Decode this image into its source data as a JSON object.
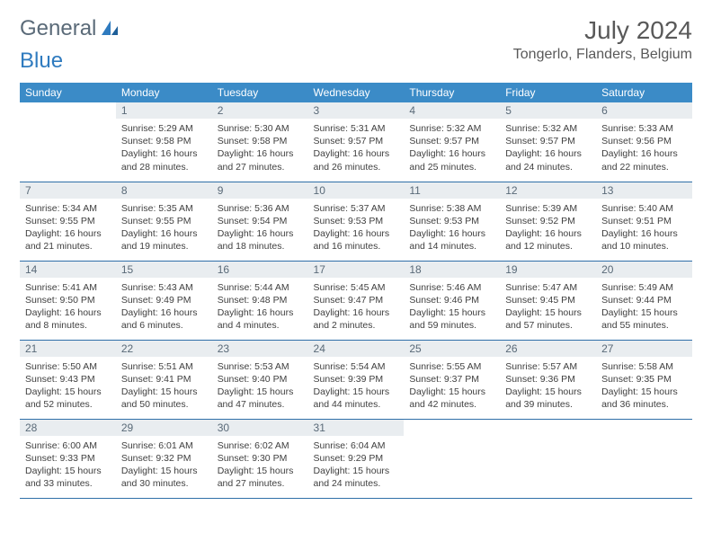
{
  "brand": {
    "word1": "General",
    "word2": "Blue"
  },
  "header": {
    "month_title": "July 2024",
    "location": "Tongerlo, Flanders, Belgium"
  },
  "colors": {
    "header_bg": "#3b8bc7",
    "header_text": "#ffffff",
    "daynum_bg": "#e9edf0",
    "daynum_text": "#5a6a78",
    "row_divider": "#2f6fa8",
    "body_text": "#404040",
    "title_text": "#595959",
    "logo_gray": "#5a6a78",
    "logo_blue": "#2f7bbf",
    "page_bg": "#ffffff"
  },
  "typography": {
    "month_title_fontsize_pt": 21,
    "location_fontsize_pt": 12,
    "dow_fontsize_pt": 9,
    "daynum_fontsize_pt": 9,
    "detail_fontsize_pt": 8
  },
  "calendar": {
    "type": "table",
    "columns": [
      "Sunday",
      "Monday",
      "Tuesday",
      "Wednesday",
      "Thursday",
      "Friday",
      "Saturday"
    ],
    "weeks": [
      [
        null,
        {
          "d": "1",
          "sr": "Sunrise: 5:29 AM",
          "ss": "Sunset: 9:58 PM",
          "dl1": "Daylight: 16 hours",
          "dl2": "and 28 minutes."
        },
        {
          "d": "2",
          "sr": "Sunrise: 5:30 AM",
          "ss": "Sunset: 9:58 PM",
          "dl1": "Daylight: 16 hours",
          "dl2": "and 27 minutes."
        },
        {
          "d": "3",
          "sr": "Sunrise: 5:31 AM",
          "ss": "Sunset: 9:57 PM",
          "dl1": "Daylight: 16 hours",
          "dl2": "and 26 minutes."
        },
        {
          "d": "4",
          "sr": "Sunrise: 5:32 AM",
          "ss": "Sunset: 9:57 PM",
          "dl1": "Daylight: 16 hours",
          "dl2": "and 25 minutes."
        },
        {
          "d": "5",
          "sr": "Sunrise: 5:32 AM",
          "ss": "Sunset: 9:57 PM",
          "dl1": "Daylight: 16 hours",
          "dl2": "and 24 minutes."
        },
        {
          "d": "6",
          "sr": "Sunrise: 5:33 AM",
          "ss": "Sunset: 9:56 PM",
          "dl1": "Daylight: 16 hours",
          "dl2": "and 22 minutes."
        }
      ],
      [
        {
          "d": "7",
          "sr": "Sunrise: 5:34 AM",
          "ss": "Sunset: 9:55 PM",
          "dl1": "Daylight: 16 hours",
          "dl2": "and 21 minutes."
        },
        {
          "d": "8",
          "sr": "Sunrise: 5:35 AM",
          "ss": "Sunset: 9:55 PM",
          "dl1": "Daylight: 16 hours",
          "dl2": "and 19 minutes."
        },
        {
          "d": "9",
          "sr": "Sunrise: 5:36 AM",
          "ss": "Sunset: 9:54 PM",
          "dl1": "Daylight: 16 hours",
          "dl2": "and 18 minutes."
        },
        {
          "d": "10",
          "sr": "Sunrise: 5:37 AM",
          "ss": "Sunset: 9:53 PM",
          "dl1": "Daylight: 16 hours",
          "dl2": "and 16 minutes."
        },
        {
          "d": "11",
          "sr": "Sunrise: 5:38 AM",
          "ss": "Sunset: 9:53 PM",
          "dl1": "Daylight: 16 hours",
          "dl2": "and 14 minutes."
        },
        {
          "d": "12",
          "sr": "Sunrise: 5:39 AM",
          "ss": "Sunset: 9:52 PM",
          "dl1": "Daylight: 16 hours",
          "dl2": "and 12 minutes."
        },
        {
          "d": "13",
          "sr": "Sunrise: 5:40 AM",
          "ss": "Sunset: 9:51 PM",
          "dl1": "Daylight: 16 hours",
          "dl2": "and 10 minutes."
        }
      ],
      [
        {
          "d": "14",
          "sr": "Sunrise: 5:41 AM",
          "ss": "Sunset: 9:50 PM",
          "dl1": "Daylight: 16 hours",
          "dl2": "and 8 minutes."
        },
        {
          "d": "15",
          "sr": "Sunrise: 5:43 AM",
          "ss": "Sunset: 9:49 PM",
          "dl1": "Daylight: 16 hours",
          "dl2": "and 6 minutes."
        },
        {
          "d": "16",
          "sr": "Sunrise: 5:44 AM",
          "ss": "Sunset: 9:48 PM",
          "dl1": "Daylight: 16 hours",
          "dl2": "and 4 minutes."
        },
        {
          "d": "17",
          "sr": "Sunrise: 5:45 AM",
          "ss": "Sunset: 9:47 PM",
          "dl1": "Daylight: 16 hours",
          "dl2": "and 2 minutes."
        },
        {
          "d": "18",
          "sr": "Sunrise: 5:46 AM",
          "ss": "Sunset: 9:46 PM",
          "dl1": "Daylight: 15 hours",
          "dl2": "and 59 minutes."
        },
        {
          "d": "19",
          "sr": "Sunrise: 5:47 AM",
          "ss": "Sunset: 9:45 PM",
          "dl1": "Daylight: 15 hours",
          "dl2": "and 57 minutes."
        },
        {
          "d": "20",
          "sr": "Sunrise: 5:49 AM",
          "ss": "Sunset: 9:44 PM",
          "dl1": "Daylight: 15 hours",
          "dl2": "and 55 minutes."
        }
      ],
      [
        {
          "d": "21",
          "sr": "Sunrise: 5:50 AM",
          "ss": "Sunset: 9:43 PM",
          "dl1": "Daylight: 15 hours",
          "dl2": "and 52 minutes."
        },
        {
          "d": "22",
          "sr": "Sunrise: 5:51 AM",
          "ss": "Sunset: 9:41 PM",
          "dl1": "Daylight: 15 hours",
          "dl2": "and 50 minutes."
        },
        {
          "d": "23",
          "sr": "Sunrise: 5:53 AM",
          "ss": "Sunset: 9:40 PM",
          "dl1": "Daylight: 15 hours",
          "dl2": "and 47 minutes."
        },
        {
          "d": "24",
          "sr": "Sunrise: 5:54 AM",
          "ss": "Sunset: 9:39 PM",
          "dl1": "Daylight: 15 hours",
          "dl2": "and 44 minutes."
        },
        {
          "d": "25",
          "sr": "Sunrise: 5:55 AM",
          "ss": "Sunset: 9:37 PM",
          "dl1": "Daylight: 15 hours",
          "dl2": "and 42 minutes."
        },
        {
          "d": "26",
          "sr": "Sunrise: 5:57 AM",
          "ss": "Sunset: 9:36 PM",
          "dl1": "Daylight: 15 hours",
          "dl2": "and 39 minutes."
        },
        {
          "d": "27",
          "sr": "Sunrise: 5:58 AM",
          "ss": "Sunset: 9:35 PM",
          "dl1": "Daylight: 15 hours",
          "dl2": "and 36 minutes."
        }
      ],
      [
        {
          "d": "28",
          "sr": "Sunrise: 6:00 AM",
          "ss": "Sunset: 9:33 PM",
          "dl1": "Daylight: 15 hours",
          "dl2": "and 33 minutes."
        },
        {
          "d": "29",
          "sr": "Sunrise: 6:01 AM",
          "ss": "Sunset: 9:32 PM",
          "dl1": "Daylight: 15 hours",
          "dl2": "and 30 minutes."
        },
        {
          "d": "30",
          "sr": "Sunrise: 6:02 AM",
          "ss": "Sunset: 9:30 PM",
          "dl1": "Daylight: 15 hours",
          "dl2": "and 27 minutes."
        },
        {
          "d": "31",
          "sr": "Sunrise: 6:04 AM",
          "ss": "Sunset: 9:29 PM",
          "dl1": "Daylight: 15 hours",
          "dl2": "and 24 minutes."
        },
        null,
        null,
        null
      ]
    ]
  }
}
